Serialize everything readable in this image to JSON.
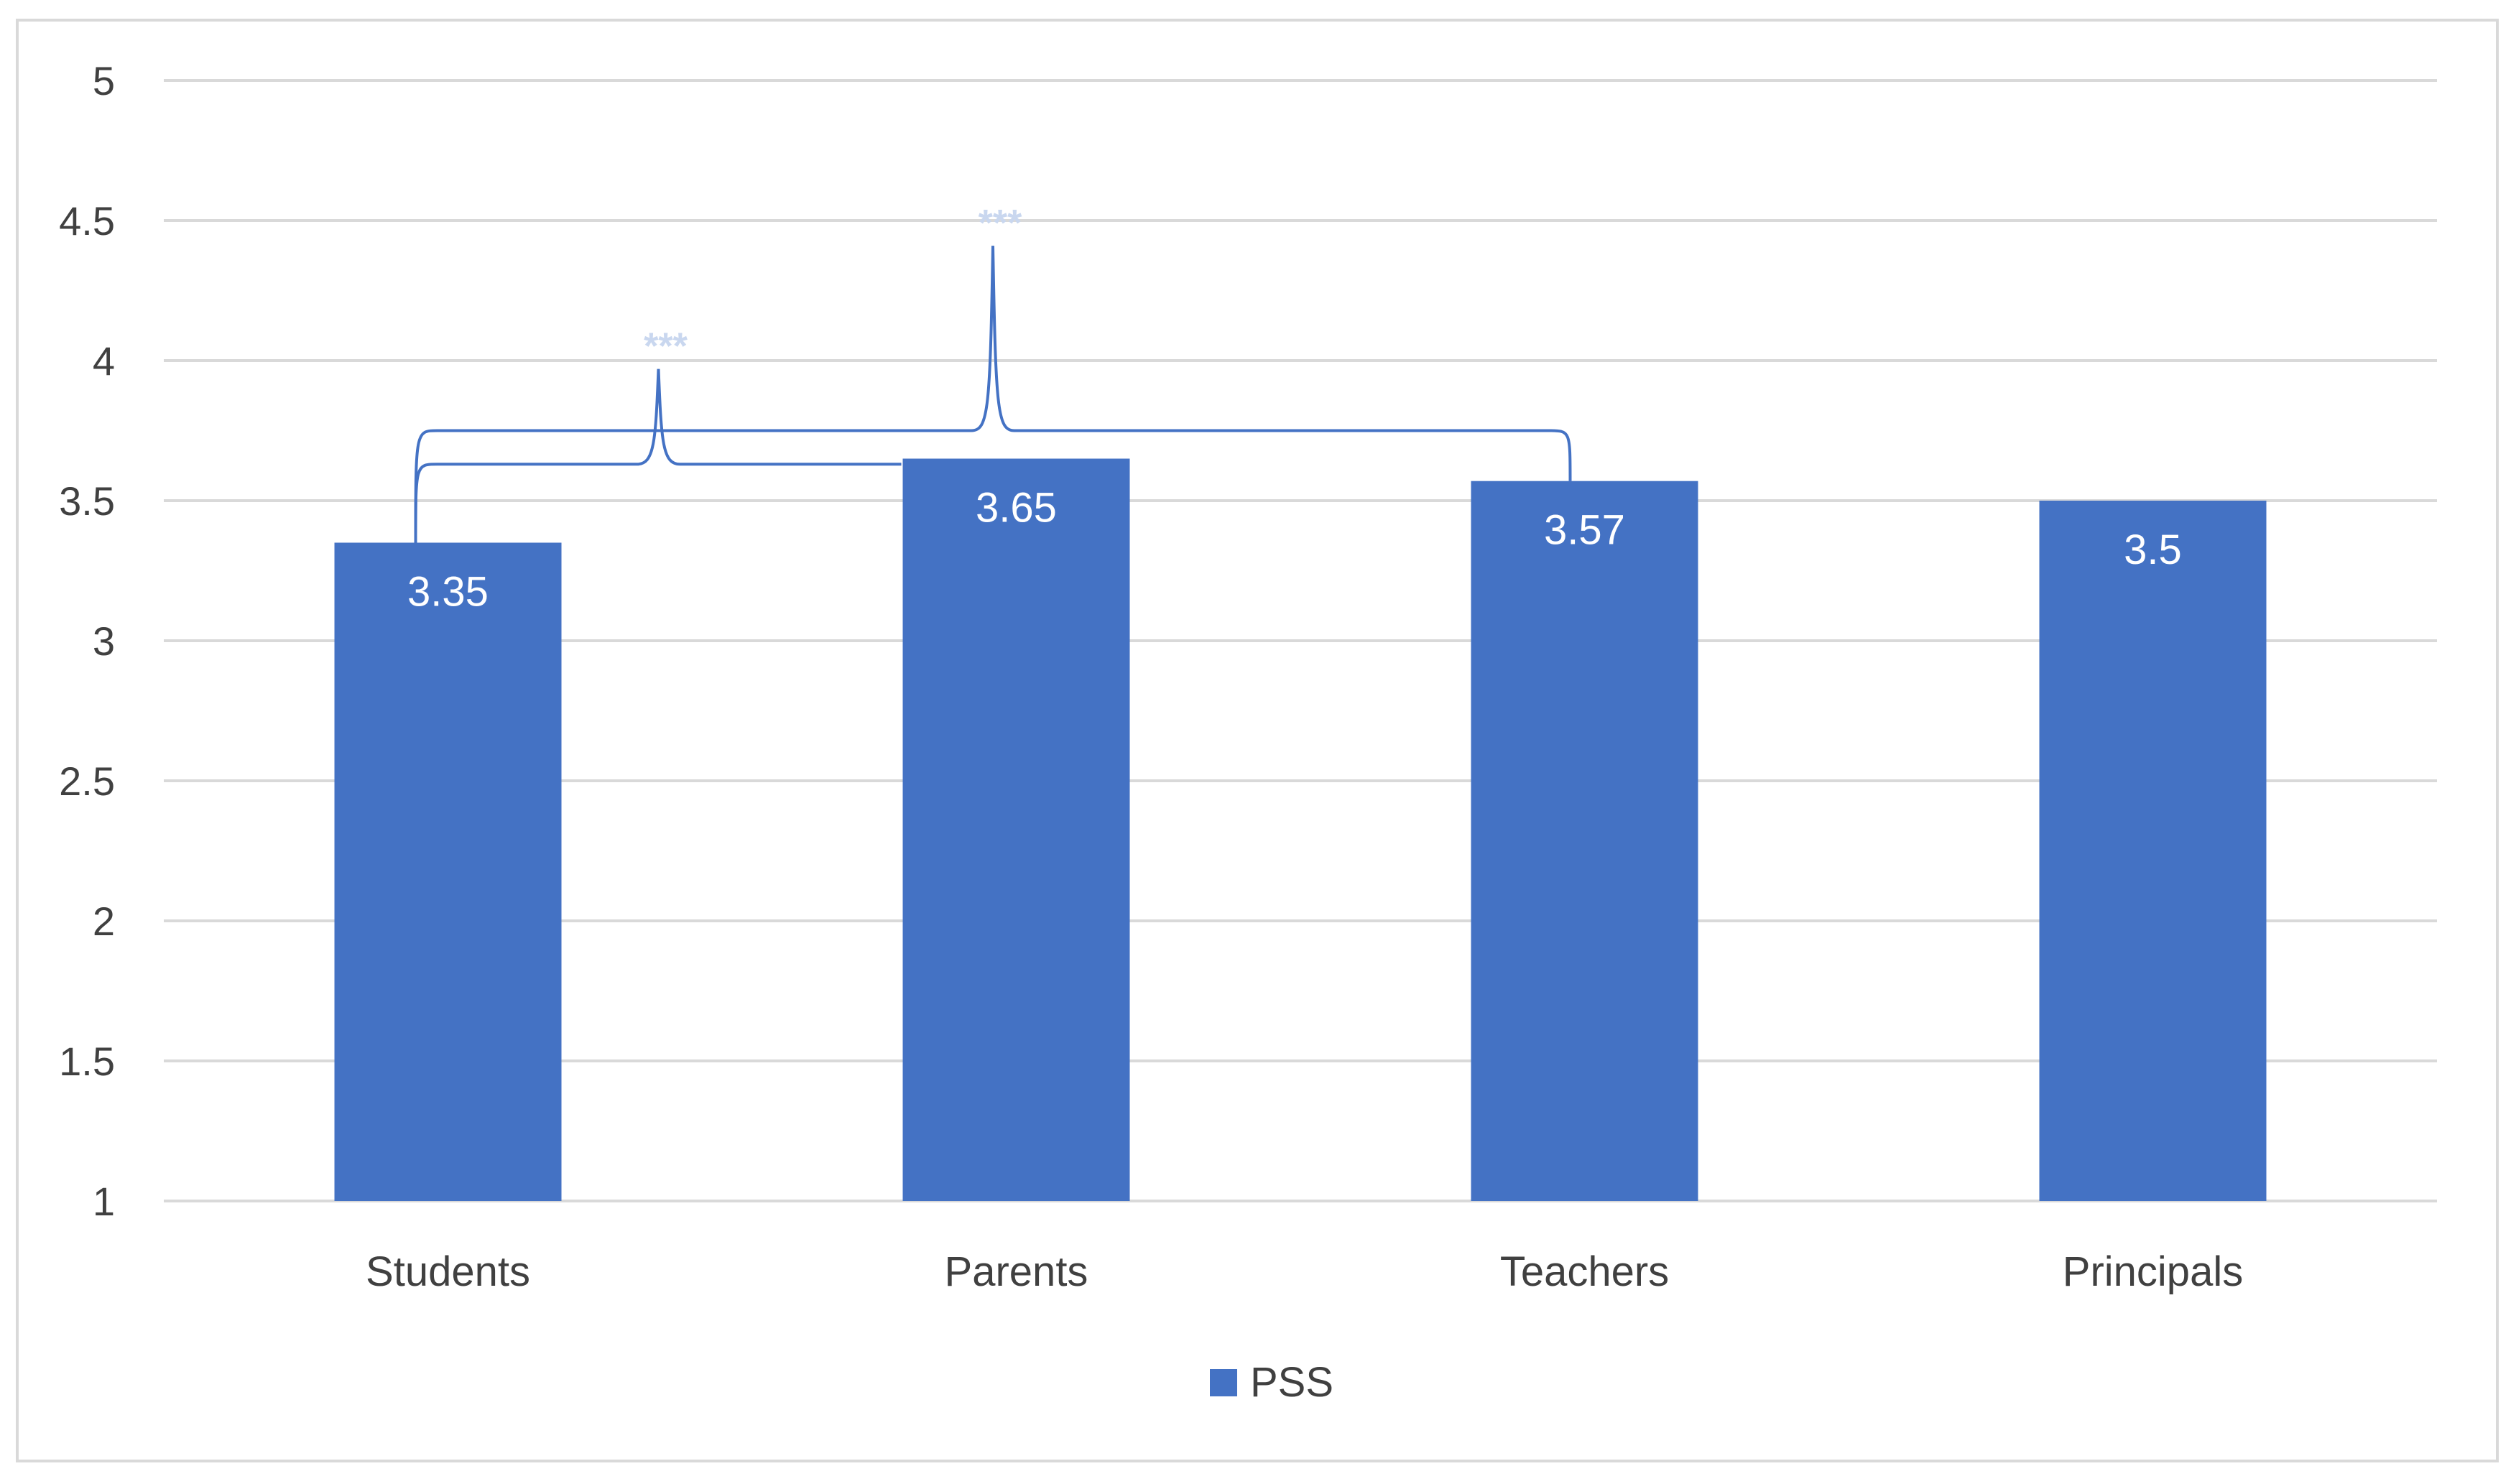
{
  "chart_data": {
    "type": "bar",
    "categories": [
      "Students",
      "Parents",
      "Teachers",
      "Principals"
    ],
    "series": [
      {
        "name": "PSS",
        "values": [
          3.35,
          3.65,
          3.57,
          3.5
        ],
        "color": "#4472c4"
      }
    ],
    "data_labels": [
      "3.35",
      "3.65",
      "3.57",
      "3.5"
    ],
    "ylim": [
      1,
      5
    ],
    "y_ticks": [
      "1",
      "1.5",
      "2",
      "2.5",
      "3",
      "3.5",
      "4",
      "4.5",
      "5"
    ],
    "grid": true,
    "legend_position": "bottom",
    "annotations": [
      {
        "text": "***",
        "between": [
          "Students",
          "Parents"
        ]
      },
      {
        "text": "***",
        "between": [
          "Students",
          "Teachers"
        ]
      }
    ],
    "gridline_color": "#d9d9d9",
    "bracket_color": "#4472c4"
  }
}
